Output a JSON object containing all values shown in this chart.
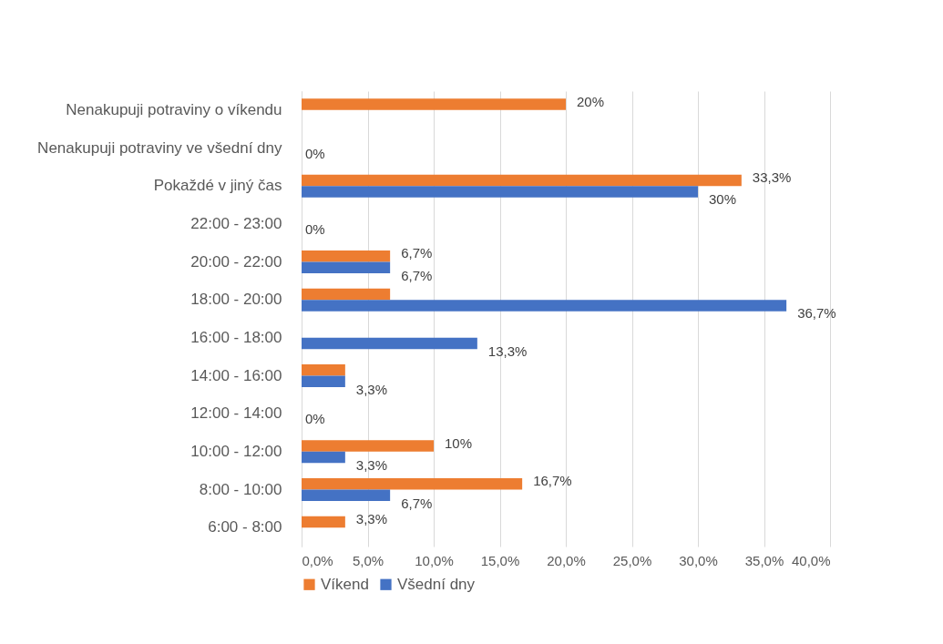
{
  "chart_data": {
    "type": "bar",
    "orientation": "horizontal",
    "categories": [
      "Nenakupuji potraviny o víkendu",
      "Nenakupuji potraviny ve všední dny",
      "Pokaždé v jiný čas",
      "22:00 - 23:00",
      "20:00 - 22:00",
      "18:00 - 20:00",
      "16:00 - 18:00",
      "14:00 - 16:00",
      "12:00 - 14:00",
      "10:00 - 12:00",
      "8:00 - 10:00",
      "6:00 - 8:00"
    ],
    "series": [
      {
        "name": "Víkend",
        "color": "#ed7d31",
        "values": [
          20,
          0,
          33.3,
          0,
          6.7,
          6.7,
          0,
          3.3,
          0,
          10,
          16.7,
          3.3
        ],
        "value_labels": [
          "20%",
          null,
          "33,3%",
          null,
          "6,7%",
          null,
          null,
          null,
          null,
          "10%",
          "16,7%",
          "3,3%"
        ]
      },
      {
        "name": "Všední dny",
        "color": "#4472c4",
        "values": [
          0,
          0,
          30,
          0,
          6.7,
          36.7,
          13.3,
          3.3,
          0,
          3.3,
          6.7,
          0
        ],
        "value_labels": [
          null,
          "0%",
          "30%",
          "0%",
          "6,7%",
          "36,7%",
          "13,3%",
          "3,3%",
          "0%",
          "3,3%",
          "6,7%",
          null
        ]
      }
    ],
    "xlim": [
      0,
      40
    ],
    "xticks": [
      {
        "value": 0,
        "label": "0,0%"
      },
      {
        "value": 5,
        "label": "5,0%"
      },
      {
        "value": 10,
        "label": "10,0%"
      },
      {
        "value": 15,
        "label": "15,0%"
      },
      {
        "value": 20,
        "label": "20,0%"
      },
      {
        "value": 25,
        "label": "25,0%"
      },
      {
        "value": 30,
        "label": "30,0%"
      },
      {
        "value": 35,
        "label": "35,0%"
      },
      {
        "value": 40,
        "label": "40,0%"
      }
    ],
    "grid": "x",
    "legend": "bottom"
  }
}
